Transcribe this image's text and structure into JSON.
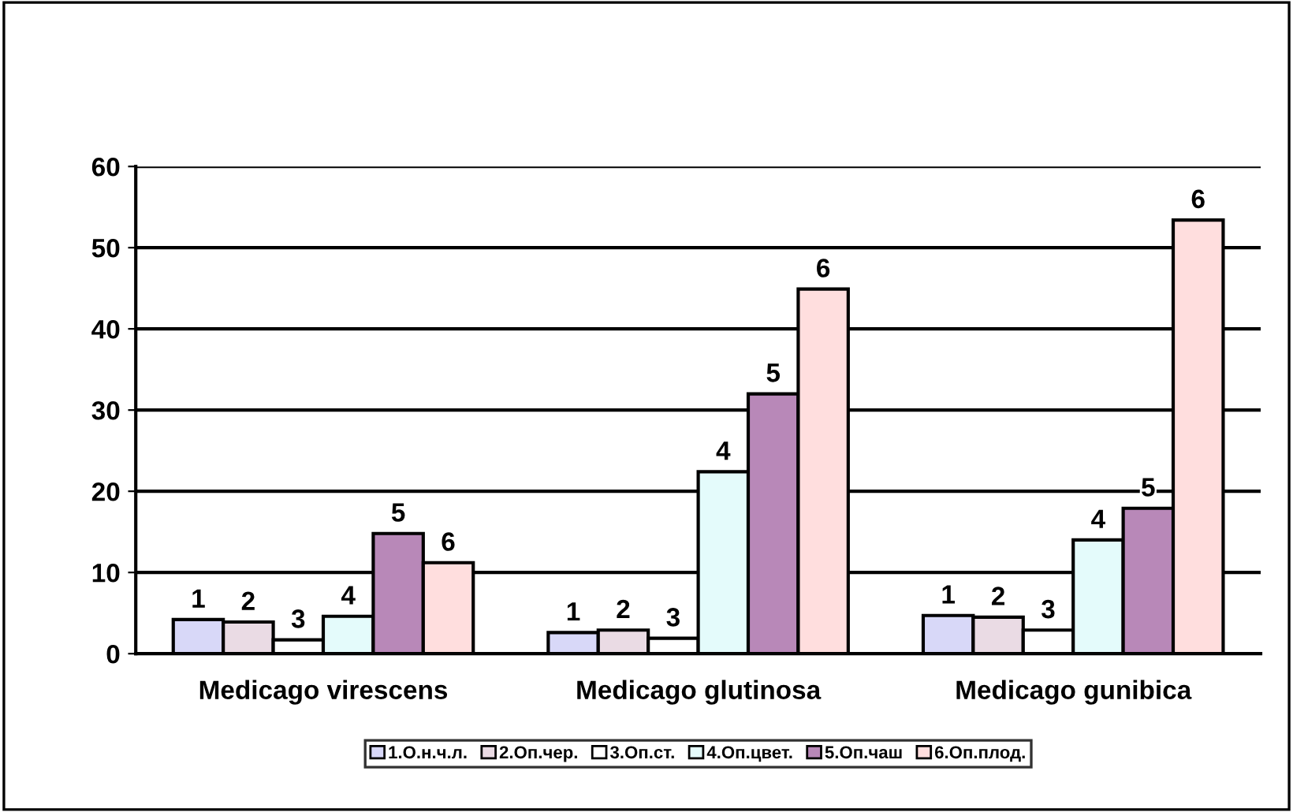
{
  "chart_data": {
    "type": "bar",
    "categories": [
      "Medicago virescens",
      "Medicago glutinosa",
      "Medicago gunibica"
    ],
    "series": [
      {
        "name": "1.О.н.ч.л.",
        "color": "#d8d8f8",
        "values": [
          4.2,
          2.6,
          4.7
        ]
      },
      {
        "name": "2.Оп.чер.",
        "color": "#eadbe4",
        "values": [
          3.9,
          2.9,
          4.5
        ]
      },
      {
        "name": "3.Оп.ст.",
        "color": "#ffffff",
        "values": [
          1.7,
          1.9,
          2.9
        ]
      },
      {
        "name": "4.Оп.цвет.",
        "color": "#e4fbfb",
        "values": [
          4.6,
          22.4,
          14.0
        ]
      },
      {
        "name": "5.Оп.чаш",
        "color": "#b888b8",
        "values": [
          14.8,
          32.0,
          17.9
        ]
      },
      {
        "name": "6.Оп.плод.",
        "color": "#ffdede",
        "values": [
          11.2,
          44.9,
          53.4
        ]
      }
    ],
    "annotations": [
      "1",
      "2",
      "3",
      "4",
      "5",
      "6",
      "1",
      "2",
      "3",
      "4",
      "5",
      "6",
      "1",
      "2",
      "3",
      "4",
      "5",
      "6"
    ],
    "ylim": [
      0,
      60
    ],
    "yticks": [
      0,
      10,
      20,
      30,
      40,
      50,
      60
    ],
    "grid": "y",
    "legend": "bottom"
  }
}
